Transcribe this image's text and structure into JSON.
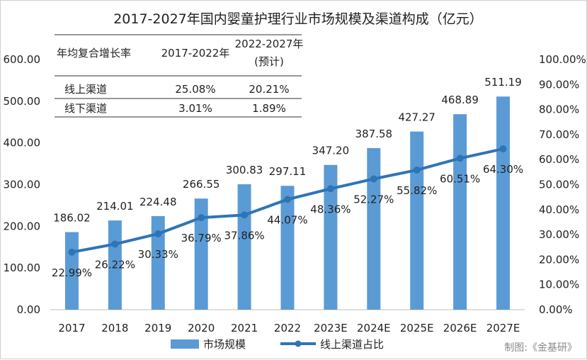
{
  "chart_data": {
    "type": "bar",
    "title": "2017-2027年国内婴童护理行业市场规模及渠道构成（亿元）",
    "categories": [
      "2017",
      "2018",
      "2019",
      "2020",
      "2021",
      "2022",
      "2023E",
      "2024E",
      "2025E",
      "2026E",
      "2027E"
    ],
    "series": [
      {
        "name": "市场规模",
        "type": "bar",
        "axis": "left",
        "values": [
          186.02,
          214.01,
          224.48,
          266.55,
          300.83,
          297.11,
          347.2,
          387.58,
          427.27,
          468.89,
          511.19
        ],
        "labels": [
          "186.02",
          "214.01",
          "224.48",
          "266.55",
          "300.83",
          "297.11",
          "347.20",
          "387.58",
          "427.27",
          "468.89",
          "511.19"
        ]
      },
      {
        "name": "线上渠道占比",
        "type": "line",
        "axis": "right",
        "values": [
          22.99,
          26.22,
          30.33,
          36.79,
          37.86,
          44.07,
          48.36,
          52.27,
          55.82,
          60.51,
          64.3
        ],
        "labels": [
          "22.99%",
          "26.22%",
          "30.33%",
          "36.79%",
          "37.86%",
          "44.07%",
          "48.36%",
          "52.27%",
          "55.82%",
          "60.51%",
          "64.30%"
        ]
      }
    ],
    "y_left": {
      "ylim": [
        0,
        600
      ],
      "ticks": [
        "0.00",
        "100.00",
        "200.00",
        "300.00",
        "400.00",
        "500.00",
        "600.00"
      ]
    },
    "y_right": {
      "ylim": [
        0,
        100
      ],
      "ticks": [
        "0.00%",
        "10.00%",
        "20.00%",
        "30.00%",
        "40.00%",
        "50.00%",
        "60.00%",
        "70.00%",
        "80.00%",
        "90.00%",
        "100.00%"
      ]
    },
    "grid": false,
    "legend_position": "bottom",
    "legend": [
      "市场规模",
      "线上渠道占比"
    ],
    "colors": {
      "bar": "#5b9bd5",
      "line": "#2e75b6",
      "marker": "#2e75b6"
    },
    "inset_table": {
      "headers": [
        "年均复合增长率",
        "2017-2022年",
        "2022-2027年",
        "(预计)"
      ],
      "rows": [
        {
          "name": "线上渠道",
          "v1": "25.08%",
          "v2": "20.21%"
        },
        {
          "name": "线下渠道",
          "v1": "3.01%",
          "v2": "1.89%"
        }
      ]
    },
    "source": "制图:《金基研》"
  }
}
